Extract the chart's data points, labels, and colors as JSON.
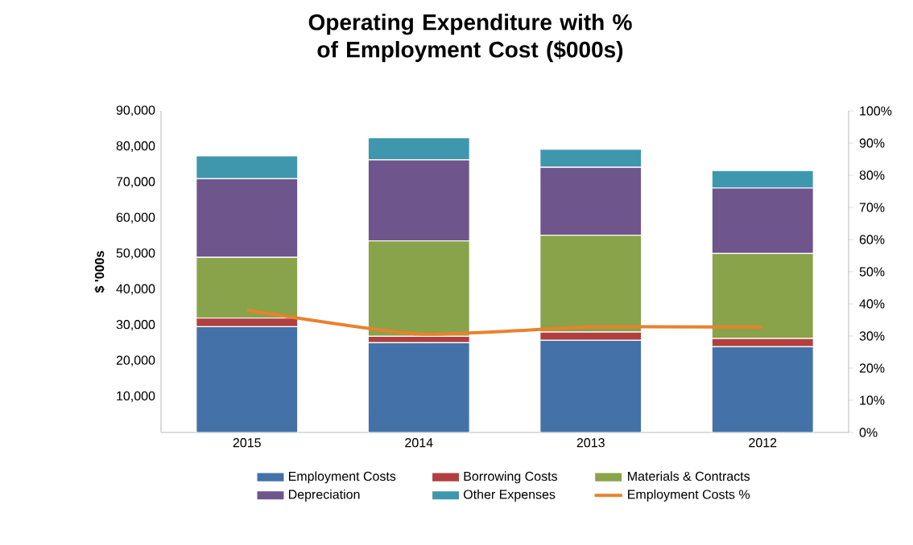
{
  "chart_data": {
    "type": "bar",
    "stacked": true,
    "title": "Operating Expenditure with % of Employment Cost ($000s)",
    "ylabel": "$ '000s",
    "categories": [
      "2015",
      "2014",
      "2013",
      "2012"
    ],
    "series": [
      {
        "name": "Employment Costs",
        "color": "#4472a8",
        "values": [
          29600,
          25100,
          25800,
          24000
        ]
      },
      {
        "name": "Borrowing Costs",
        "color": "#b04040",
        "values": [
          2400,
          1800,
          2300,
          2300
        ]
      },
      {
        "name": "Materials & Contracts",
        "color": "#88a34a",
        "values": [
          17000,
          26700,
          27100,
          23800
        ]
      },
      {
        "name": "Depreciation",
        "color": "#6e558c",
        "values": [
          22000,
          22700,
          19000,
          18300
        ]
      },
      {
        "name": "Other Expenses",
        "color": "#3f97ae",
        "values": [
          6400,
          6200,
          5100,
          4900
        ]
      },
      {
        "name": "Employment Costs %",
        "type": "line",
        "axis": "y2",
        "color": "#e8822e",
        "values": [
          38,
          30.6,
          32.8,
          32.8
        ]
      }
    ],
    "ylim": [
      0,
      90000
    ],
    "yticks": [
      {
        "value": 10000,
        "label": "10,000"
      },
      {
        "value": 20000,
        "label": "20,000"
      },
      {
        "value": 30000,
        "label": "30,000"
      },
      {
        "value": 40000,
        "label": "40,000"
      },
      {
        "value": 50000,
        "label": "50,000"
      },
      {
        "value": 60000,
        "label": "60,000"
      },
      {
        "value": 70000,
        "label": "70,000"
      },
      {
        "value": 80000,
        "label": "80,000"
      },
      {
        "value": 90000,
        "label": "90,000"
      }
    ],
    "y2lim": [
      0,
      100
    ],
    "y2ticks": [
      {
        "value": 0,
        "label": "0%"
      },
      {
        "value": 10,
        "label": "10%"
      },
      {
        "value": 20,
        "label": "20%"
      },
      {
        "value": 30,
        "label": "30%"
      },
      {
        "value": 40,
        "label": "40%"
      },
      {
        "value": 50,
        "label": "50%"
      },
      {
        "value": 60,
        "label": "60%"
      },
      {
        "value": 70,
        "label": "70%"
      },
      {
        "value": 80,
        "label": "80%"
      },
      {
        "value": 90,
        "label": "90%"
      },
      {
        "value": 100,
        "label": "100%"
      }
    ],
    "legend": "bottom"
  }
}
